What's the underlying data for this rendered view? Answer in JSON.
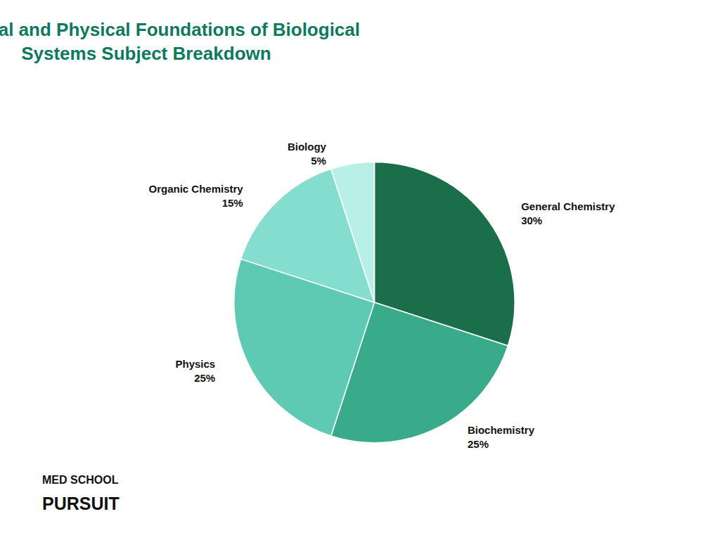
{
  "chart_data": {
    "type": "pie",
    "title": "Chemical and Physical Foundations of Biological\nSystems Subject Breakdown",
    "categories": [
      "General Chemistry",
      "Biochemistry",
      "Physics",
      "Organic Chemistry",
      "Biology"
    ],
    "values": [
      30,
      25,
      25,
      15,
      5
    ],
    "value_labels": [
      "30%",
      "25%",
      "25%",
      "15%",
      "5%"
    ],
    "colors": [
      "#1a6e4a",
      "#3aab8a",
      "#5ecab4",
      "#85ddd0",
      "#b8f0e8"
    ],
    "data_labels": true,
    "annotations": [
      "MED SCHOOL",
      "PURSUIT"
    ]
  }
}
